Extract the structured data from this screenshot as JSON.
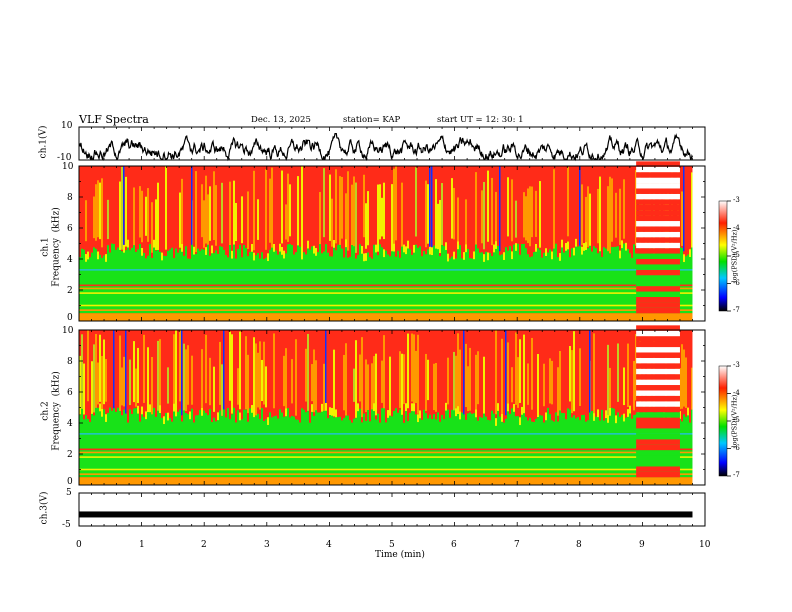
{
  "header": {
    "title": "VLF Spectra",
    "date": "Dec. 13, 2025",
    "station": "station= KAP",
    "start_ut": "start  UT  =   12: 30: 1"
  },
  "chart_data": [
    {
      "type": "line",
      "panel": "ch1-waveform",
      "ylabel": "ch.1(V)",
      "ylim": [
        -10,
        10
      ],
      "ytick_labels": [
        "10",
        "-10"
      ],
      "xlim": [
        0,
        10
      ],
      "description_series": "noisy waveform roughly between -10 and 5 V, trace ends near 9.8 min"
    },
    {
      "type": "heatmap",
      "panel": "ch1-spectrogram",
      "ylabel": "ch.1\nFrequency  (kHz)",
      "ylim": [
        0,
        10
      ],
      "ytick_labels": [
        "0",
        "2",
        "4",
        "6",
        "8",
        "10"
      ],
      "xlim": [
        0,
        10
      ],
      "data_end_min": 9.8,
      "colorbar": {
        "label": "log(PSD)(V²/Hz)",
        "range": [
          -7,
          -3
        ],
        "tick_labels": [
          "-3",
          "-4",
          "-5",
          "-6",
          "-7"
        ]
      }
    },
    {
      "type": "heatmap",
      "panel": "ch2-spectrogram",
      "ylabel": "ch.2\nFrequency  (kHz)",
      "ylim": [
        0,
        10
      ],
      "ytick_labels": [
        "0",
        "2",
        "4",
        "6",
        "8",
        "10"
      ],
      "xlim": [
        0,
        10
      ],
      "data_end_min": 9.8,
      "colorbar": {
        "label": "log(PSD)(V²/Hz)",
        "range": [
          -7,
          -3
        ],
        "tick_labels": [
          "-3",
          "-4",
          "-5",
          "-6",
          "-7"
        ]
      }
    },
    {
      "type": "line",
      "panel": "ch3-waveform",
      "ylabel": "ch.3(V)",
      "ylim": [
        -5,
        5
      ],
      "ytick_labels": [
        "5",
        "-5"
      ],
      "xlim": [
        0,
        10
      ],
      "level_v": -1.5
    }
  ],
  "xaxis": {
    "label": "Time  (min)",
    "tick_labels": [
      "0",
      "1",
      "2",
      "3",
      "4",
      "5",
      "6",
      "7",
      "8",
      "9",
      "10"
    ]
  },
  "colors": {
    "red": "#ff2b18",
    "orange": "#ff9800",
    "yellow": "#f2f200",
    "green": "#18e218",
    "cyan": "#22c4c4",
    "blue": "#1030ff",
    "black": "#000000"
  }
}
